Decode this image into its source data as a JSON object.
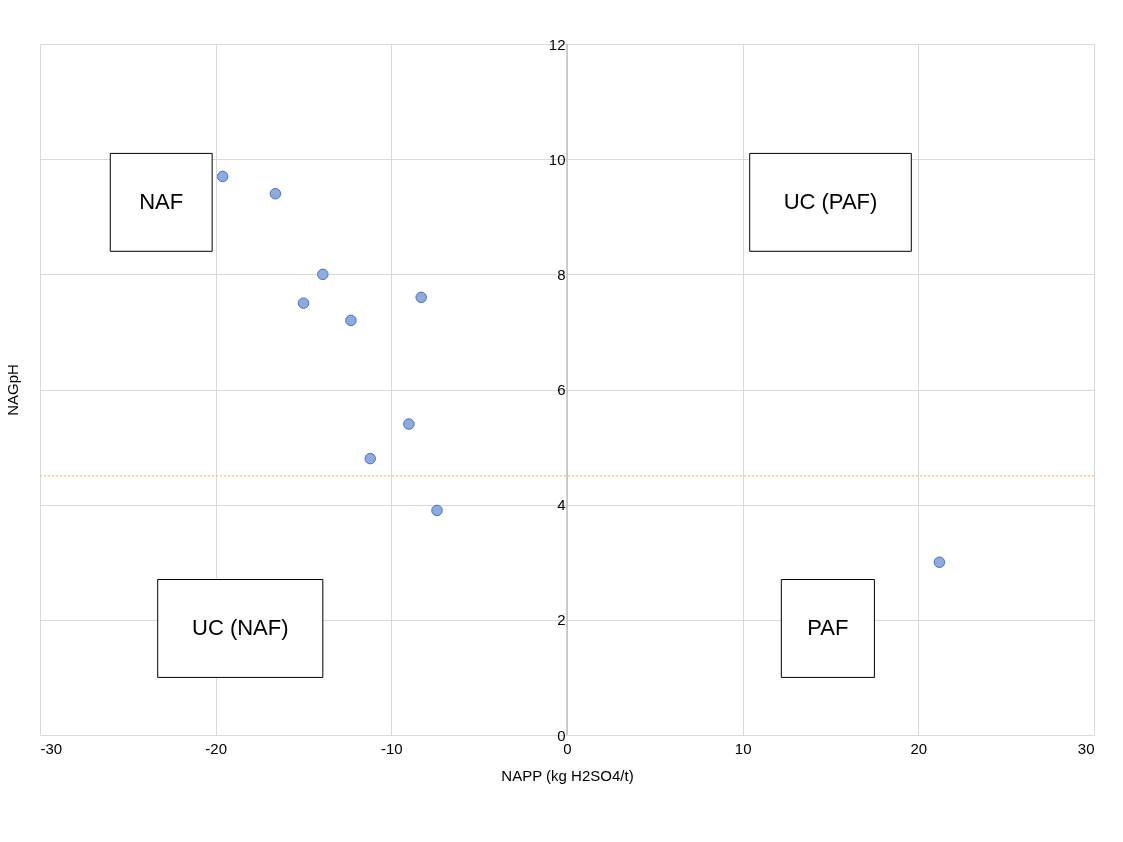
{
  "chart_data": {
    "type": "scatter",
    "xlabel": "NAPP (kg H2SO4/t)",
    "ylabel": "NAGpH",
    "x": [
      -19.6,
      -16.6,
      -13.9,
      -15.0,
      -8.3,
      -12.3,
      -9.0,
      -11.2,
      -7.4,
      21.2
    ],
    "series": [
      {
        "color": "#8faadc",
        "values": [
          9.7,
          9.4,
          8.0,
          7.5,
          7.6,
          7.2,
          5.4,
          4.8,
          3.9,
          3.0
        ]
      }
    ],
    "xlim": [
      -30,
      30
    ],
    "xticks": [
      -30,
      -20,
      -10,
      0,
      10,
      20,
      30
    ],
    "ylim": [
      0,
      12
    ],
    "yticks": [
      0,
      2,
      4,
      6,
      8,
      10,
      12
    ],
    "grid": true,
    "marker": "circle",
    "ref_lines": [
      {
        "axis": "y",
        "value": 4.5,
        "color": "#f4b183",
        "line_style": "dotted"
      }
    ],
    "annotations": [
      "NAF",
      "UC (PAF)",
      "UC (NAF)",
      "PAF"
    ]
  }
}
